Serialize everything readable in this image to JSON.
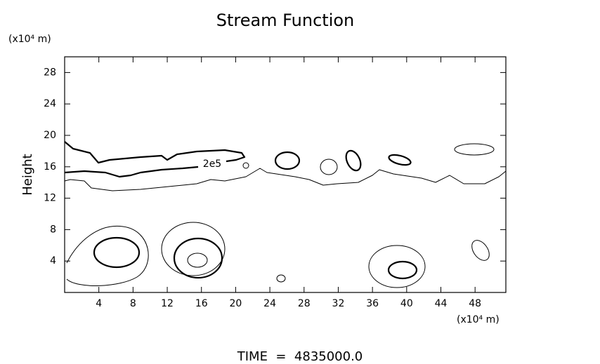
{
  "chart_data": {
    "type": "contour",
    "title": "Stream Function",
    "y_unit": "(x10⁴ m)",
    "x_unit": "(x10⁴ m)",
    "y_label": "Height",
    "footer": "TIME  =  4835000.0",
    "contour_label": "2e5",
    "xlim": [
      0,
      51.6
    ],
    "ylim": [
      0,
      30
    ],
    "xticks": [
      4,
      8,
      12,
      16,
      20,
      24,
      28,
      32,
      36,
      40,
      44,
      48
    ],
    "yticks": [
      4,
      8,
      12,
      16,
      20,
      24,
      28
    ]
  }
}
